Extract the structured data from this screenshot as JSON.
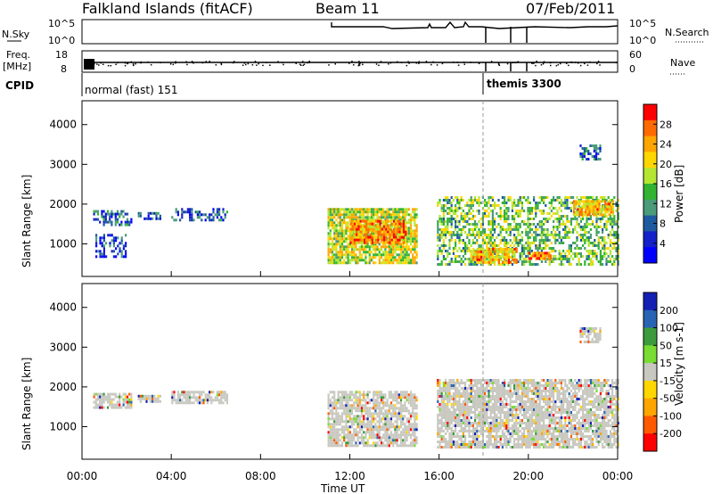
{
  "header": {
    "station": "Falkland Islands (fitACF)",
    "beam": "Beam 11",
    "date": "07/Feb/2011"
  },
  "top_panels": {
    "nsky_label": "N.Sky",
    "nsky_ticks": [
      "10^5",
      "10^0"
    ],
    "nsearch_label": "N.Search",
    "nsearch_ticks": [
      "10^5",
      "10^0"
    ],
    "freq_label": "Freq.",
    "freq_unit": "[MHz]",
    "freq_ticks": [
      "18",
      "8"
    ],
    "nave_label": "Nave",
    "nave_ticks": [
      "60",
      "0"
    ],
    "cpid_label": "CPID",
    "cpid_modes": [
      {
        "text": "normal (fast) 151",
        "start_hour": 0.0
      },
      {
        "text": "themis 3300",
        "start_hour": 18.0
      }
    ]
  },
  "axes": {
    "x_label": "Time UT",
    "x_ticks": [
      "00:00",
      "04:00",
      "08:00",
      "12:00",
      "16:00",
      "20:00",
      "00:00"
    ],
    "y_label": "Slant Range [km]",
    "y_ticks": [
      "1000",
      "2000",
      "3000",
      "4000"
    ]
  },
  "power_scale": {
    "label": "Power [dB]",
    "ticks": [
      "28",
      "24",
      "20",
      "16",
      "12",
      "8",
      "4"
    ],
    "colors": [
      "#ff0000",
      "#ff6a00",
      "#ffa500",
      "#ffd700",
      "#b4e632",
      "#32b432",
      "#4a9b7a",
      "#1e5aa0",
      "#1420c8",
      "#0000ff"
    ]
  },
  "velocity_scale": {
    "label": "Velocity [m s-1]",
    "ticks": [
      "200",
      "100",
      "50",
      "15",
      "-15",
      "-50",
      "-100",
      "-200"
    ],
    "colors": [
      "#1420b4",
      "#2864b4",
      "#3c9b3c",
      "#78dc32",
      "#c8c8c0",
      "#ffd700",
      "#ffa500",
      "#ff5a00",
      "#ff0000"
    ]
  },
  "chart_data": [
    {
      "type": "heatmap",
      "title": "Power [dB]",
      "xlabel": "Time UT",
      "ylabel": "Slant Range [km]",
      "xlim": [
        0,
        24
      ],
      "ylim": [
        180,
        4600
      ],
      "colorbar_range": [
        0,
        30
      ],
      "echo_regions": [
        {
          "t0": 0.5,
          "t1": 2.2,
          "r0": 1450,
          "r1": 1850,
          "power": 6
        },
        {
          "t0": 0.6,
          "t1": 2.0,
          "r0": 700,
          "r1": 1250,
          "power": 5
        },
        {
          "t0": 2.5,
          "t1": 3.5,
          "r0": 1600,
          "r1": 1800,
          "power": 6
        },
        {
          "t0": 4.0,
          "t1": 6.5,
          "r0": 1600,
          "r1": 1900,
          "power": 6
        },
        {
          "t0": 11.0,
          "t1": 15.0,
          "r0": 500,
          "r1": 1900,
          "power": 18
        },
        {
          "t0": 12.0,
          "t1": 14.5,
          "r0": 1000,
          "r1": 1600,
          "power": 24
        },
        {
          "t0": 15.9,
          "t1": 24.0,
          "r0": 500,
          "r1": 2200,
          "power": 14
        },
        {
          "t0": 17.5,
          "t1": 19.5,
          "r0": 500,
          "r1": 900,
          "power": 22
        },
        {
          "t0": 20.0,
          "t1": 21.0,
          "r0": 600,
          "r1": 800,
          "power": 26
        },
        {
          "t0": 22.0,
          "t1": 23.8,
          "r0": 1700,
          "r1": 2100,
          "power": 22
        },
        {
          "t0": 22.3,
          "t1": 23.2,
          "r0": 3100,
          "r1": 3500,
          "power": 6
        }
      ]
    },
    {
      "type": "heatmap",
      "title": "Velocity [m s-1]",
      "xlabel": "Time UT",
      "ylabel": "Slant Range [km]",
      "xlim": [
        0,
        24
      ],
      "ylim": [
        180,
        4600
      ],
      "colorbar_range": [
        -200,
        200
      ],
      "echo_regions": [
        {
          "t0": 0.5,
          "t1": 2.2,
          "r0": 1450,
          "r1": 1850,
          "velocity": 0
        },
        {
          "t0": 2.5,
          "t1": 3.5,
          "r0": 1600,
          "r1": 1800,
          "velocity": 0
        },
        {
          "t0": 4.0,
          "t1": 6.5,
          "r0": 1600,
          "r1": 1900,
          "velocity": 0
        },
        {
          "t0": 11.0,
          "t1": 15.0,
          "r0": 500,
          "r1": 1900,
          "velocity": 0
        },
        {
          "t0": 15.9,
          "t1": 24.0,
          "r0": 500,
          "r1": 2200,
          "velocity": 0
        },
        {
          "t0": 22.3,
          "t1": 23.2,
          "r0": 3100,
          "r1": 3500,
          "velocity": 0
        }
      ]
    }
  ]
}
